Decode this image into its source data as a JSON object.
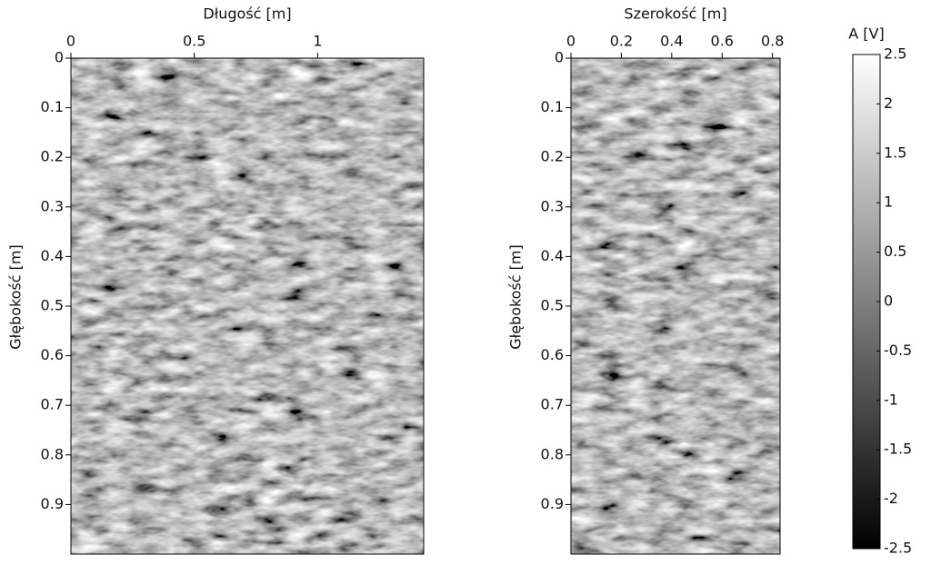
{
  "chart_data": [
    {
      "type": "image",
      "title": "Długość [m]",
      "ylabel": "Głębokość [m]",
      "xlim": [
        0,
        1.43
      ],
      "xticks": [
        0,
        0.5,
        1
      ],
      "ylim": [
        0,
        1
      ],
      "yticks": [
        0,
        0.1,
        0.2,
        0.3,
        0.4,
        0.5,
        0.6,
        0.7,
        0.8,
        0.9
      ],
      "y_inverted": true
    },
    {
      "type": "image",
      "title": "Szerokość [m]",
      "ylabel": "Głębokość [m]",
      "xlim": [
        0,
        0.83
      ],
      "xticks": [
        0,
        0.2,
        0.4,
        0.6,
        0.8
      ],
      "ylim": [
        0,
        1
      ],
      "yticks": [
        0,
        0.1,
        0.2,
        0.3,
        0.4,
        0.5,
        0.6,
        0.7,
        0.8,
        0.9
      ],
      "y_inverted": true
    },
    {
      "type": "colorbar",
      "title": "A [V]",
      "ylim": [
        -2.5,
        2.5
      ],
      "yticks": [
        -2.5,
        -2,
        -1.5,
        -1,
        -0.5,
        0,
        0.5,
        1,
        1.5,
        2,
        2.5
      ],
      "colormap": [
        "#000000",
        "#ffffff"
      ]
    }
  ]
}
